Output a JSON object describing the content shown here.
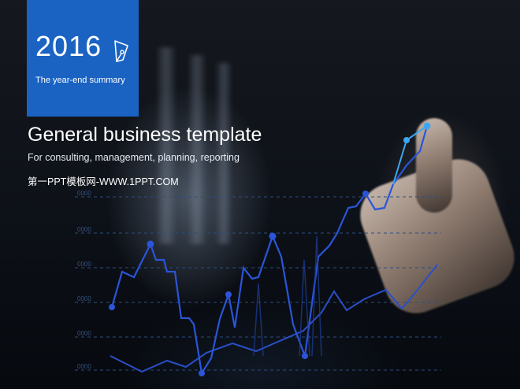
{
  "header": {
    "year": "2016",
    "subtitle": "The year-end summary"
  },
  "main": {
    "title": "General business template",
    "tagline": "For consulting, management, planning, reporting",
    "site": "第一PPT模板网-WWW.1PPT.COM"
  },
  "icons": {
    "pen": "pen-nib-icon"
  },
  "colors": {
    "accent": "#1a63c3",
    "line_primary": "#2a55d8",
    "line_highlight": "#3ba7f0"
  },
  "background_chart": {
    "axis_labels": [
      "0000",
      "0000",
      "0000",
      "0000",
      "0000",
      "0000"
    ]
  }
}
